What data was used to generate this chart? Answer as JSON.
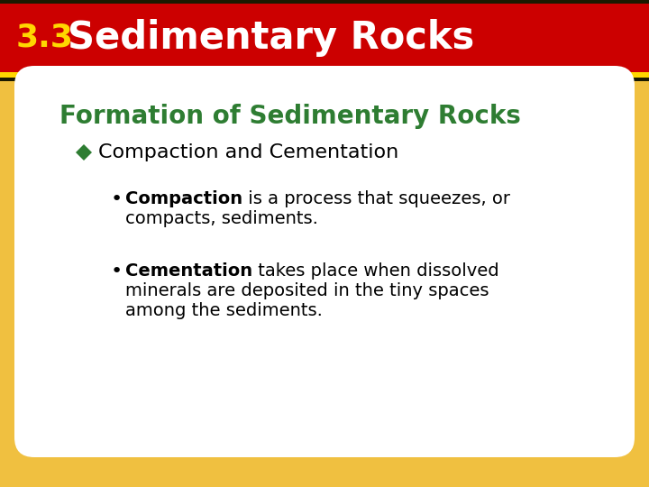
{
  "header_bg_color": "#CC0000",
  "header_border_top_color": "#2A2A00",
  "header_border_bottom_color": "#FFD700",
  "header_number": "3.3",
  "header_number_color": "#FFD700",
  "header_title": "Sedimentary Rocks",
  "header_title_color": "#FFFFFF",
  "body_bg_top": "#E8C060",
  "body_bg_bottom": "#F0D080",
  "card_bg_color": "#FFFFFF",
  "section_title": "Formation of Sedimentary Rocks",
  "section_title_color": "#2E7D32",
  "bullet1_label": "Compaction and Cementation",
  "bullet1_color": "#000000",
  "diamond_color": "#2E7D32",
  "sub_bullet1_bold": "Compaction",
  "sub_bullet1_rest": " is a process that squeezes, or",
  "sub_bullet1_line2": "compacts, sediments.",
  "sub_bullet2_bold": "Cementation",
  "sub_bullet2_rest": " takes place when dissolved",
  "sub_bullet2_line2": "minerals are deposited in the tiny spaces",
  "sub_bullet2_line3": "among the sediments.",
  "text_color": "#000000",
  "fig_width": 7.2,
  "fig_height": 5.4,
  "dpi": 100
}
